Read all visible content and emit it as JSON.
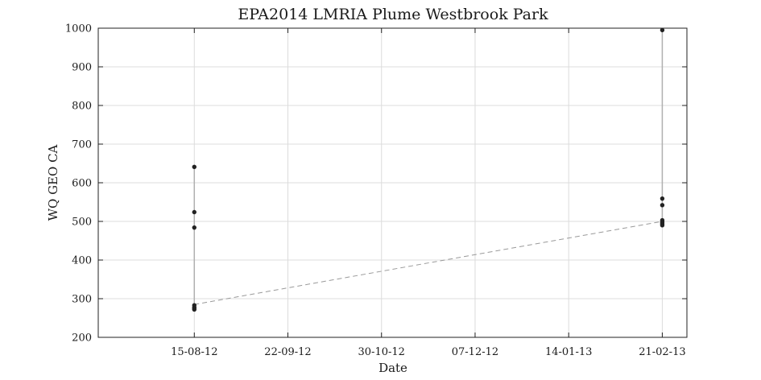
{
  "chart_data": {
    "type": "line",
    "title": "EPA2014 LMRIA Plume Westbrook Park",
    "xlabel": "Date",
    "ylabel": "WQ GEO CA",
    "x_axis": {
      "type": "date",
      "range": [
        "2012-07-07",
        "2013-03-03"
      ],
      "ticks": [
        "2012-08-15",
        "2012-09-22",
        "2012-10-30",
        "2012-12-07",
        "2013-01-14",
        "2013-02-21"
      ],
      "tick_labels": [
        "15-08-12",
        "22-09-12",
        "30-10-12",
        "07-12-12",
        "14-01-13",
        "21-02-13"
      ]
    },
    "y_axis": {
      "range": [
        200,
        1000
      ],
      "ticks": [
        200,
        300,
        400,
        500,
        600,
        700,
        800,
        900,
        1000
      ],
      "tick_labels": [
        "200",
        "300",
        "400",
        "500",
        "600",
        "700",
        "800",
        "900",
        "1000"
      ]
    },
    "grid": true,
    "series": [
      {
        "type": "scatter",
        "color": "#222222",
        "points": [
          {
            "x": "2012-08-15",
            "y": 641
          },
          {
            "x": "2012-08-15",
            "y": 524
          },
          {
            "x": "2012-08-15",
            "y": 484
          },
          {
            "x": "2012-08-15",
            "y": 283
          },
          {
            "x": "2012-08-15",
            "y": 278
          },
          {
            "x": "2012-08-15",
            "y": 275
          },
          {
            "x": "2012-08-15",
            "y": 272
          },
          {
            "x": "2013-02-21",
            "y": 995
          },
          {
            "x": "2013-02-21",
            "y": 559
          },
          {
            "x": "2013-02-21",
            "y": 542
          },
          {
            "x": "2013-02-21",
            "y": 503
          },
          {
            "x": "2013-02-21",
            "y": 499
          },
          {
            "x": "2013-02-21",
            "y": 496
          },
          {
            "x": "2013-02-21",
            "y": 493
          },
          {
            "x": "2013-02-21",
            "y": 490
          }
        ]
      },
      {
        "type": "line",
        "style": "dashed",
        "color": "#9a9a9a",
        "points": [
          {
            "x": "2012-08-15",
            "y": 285
          },
          {
            "x": "2013-02-21",
            "y": 500
          }
        ]
      }
    ],
    "range_bars": [
      {
        "x": "2012-08-15",
        "min": 272,
        "max": 641,
        "color": "#b0b0b0"
      },
      {
        "x": "2013-02-21",
        "min": 490,
        "max": 995,
        "color": "#b0b0b0"
      }
    ]
  }
}
